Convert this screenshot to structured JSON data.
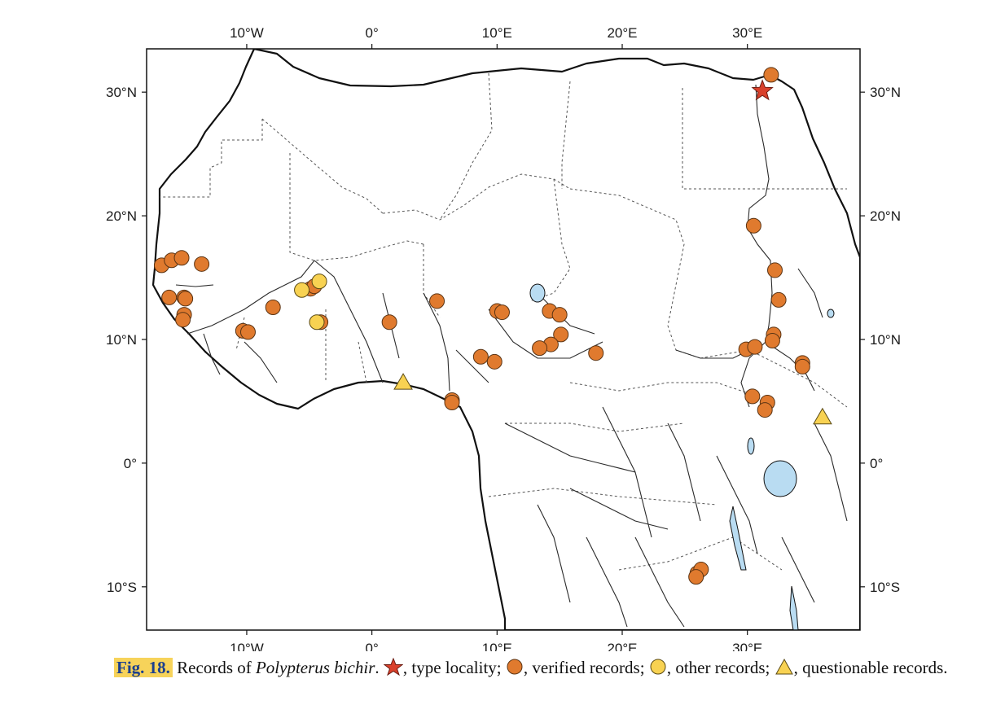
{
  "map": {
    "bounds": {
      "lon_min": -18,
      "lon_max": 39,
      "lat_min": -13.5,
      "lat_max": 33.5
    },
    "x_ticks": [
      {
        "lon": -10,
        "label": "10°W"
      },
      {
        "lon": 0,
        "label": "0°"
      },
      {
        "lon": 10,
        "label": "10°E"
      },
      {
        "lon": 20,
        "label": "20°E"
      },
      {
        "lon": 30,
        "label": "30°E"
      }
    ],
    "y_ticks": [
      {
        "lat": 30,
        "label": "30°N"
      },
      {
        "lat": 20,
        "label": "20°N"
      },
      {
        "lat": 10,
        "label": "10°N"
      },
      {
        "lat": 0,
        "label": "0°"
      },
      {
        "lat": -10,
        "label": "10°S"
      }
    ],
    "colors": {
      "land": "#ffffff",
      "water": "#b9dcf2",
      "border": "#555555",
      "coast": "#111111",
      "river": "#2a2a2a",
      "verified": "#e07a2e",
      "other": "#f8d252",
      "questionable": "#f8d252",
      "type_locality": "#d9402b"
    },
    "records": {
      "type_locality": [
        [
          31.2,
          30.1
        ]
      ],
      "verified": [
        [
          31.9,
          31.4
        ],
        [
          30.5,
          19.2
        ],
        [
          -16.8,
          16.0
        ],
        [
          -16.0,
          16.4
        ],
        [
          -15.2,
          16.6
        ],
        [
          -13.6,
          16.1
        ],
        [
          -16.2,
          13.4
        ],
        [
          -15.0,
          13.4
        ],
        [
          -14.9,
          13.3
        ],
        [
          -15.0,
          12.0
        ],
        [
          -15.1,
          11.6
        ],
        [
          -10.3,
          10.7
        ],
        [
          -9.9,
          10.6
        ],
        [
          -7.9,
          12.6
        ],
        [
          -4.9,
          14.1
        ],
        [
          -4.6,
          14.3
        ],
        [
          -4.1,
          11.4
        ],
        [
          1.4,
          11.4
        ],
        [
          5.2,
          13.1
        ],
        [
          6.4,
          5.1
        ],
        [
          6.4,
          4.9
        ],
        [
          10.0,
          12.3
        ],
        [
          10.4,
          12.2
        ],
        [
          8.7,
          8.6
        ],
        [
          9.8,
          8.2
        ],
        [
          14.2,
          12.3
        ],
        [
          15.0,
          12.0
        ],
        [
          15.1,
          10.4
        ],
        [
          14.3,
          9.6
        ],
        [
          13.4,
          9.3
        ],
        [
          17.9,
          8.9
        ],
        [
          32.2,
          15.6
        ],
        [
          32.5,
          13.2
        ],
        [
          32.1,
          10.4
        ],
        [
          32.0,
          9.9
        ],
        [
          29.9,
          9.2
        ],
        [
          30.6,
          9.4
        ],
        [
          34.4,
          8.1
        ],
        [
          34.4,
          7.8
        ],
        [
          30.4,
          5.4
        ],
        [
          31.6,
          4.9
        ],
        [
          31.4,
          4.3
        ],
        [
          26.0,
          -8.9
        ],
        [
          26.3,
          -8.6
        ],
        [
          25.9,
          -9.2
        ]
      ],
      "other": [
        [
          -5.6,
          14.0
        ],
        [
          -4.2,
          14.7
        ],
        [
          -4.4,
          11.4
        ]
      ],
      "questionable": [
        [
          2.5,
          6.5
        ],
        [
          36.0,
          3.7
        ]
      ]
    }
  },
  "caption": {
    "fig_label": "Fig. 18.",
    "lead": " Records of ",
    "species": "Polypterus bichir",
    "after_species": ". ",
    "type_locality": ", type locality; ",
    "verified": ", verified records; ",
    "other": ", other records; ",
    "questionable": ", questionable records."
  }
}
